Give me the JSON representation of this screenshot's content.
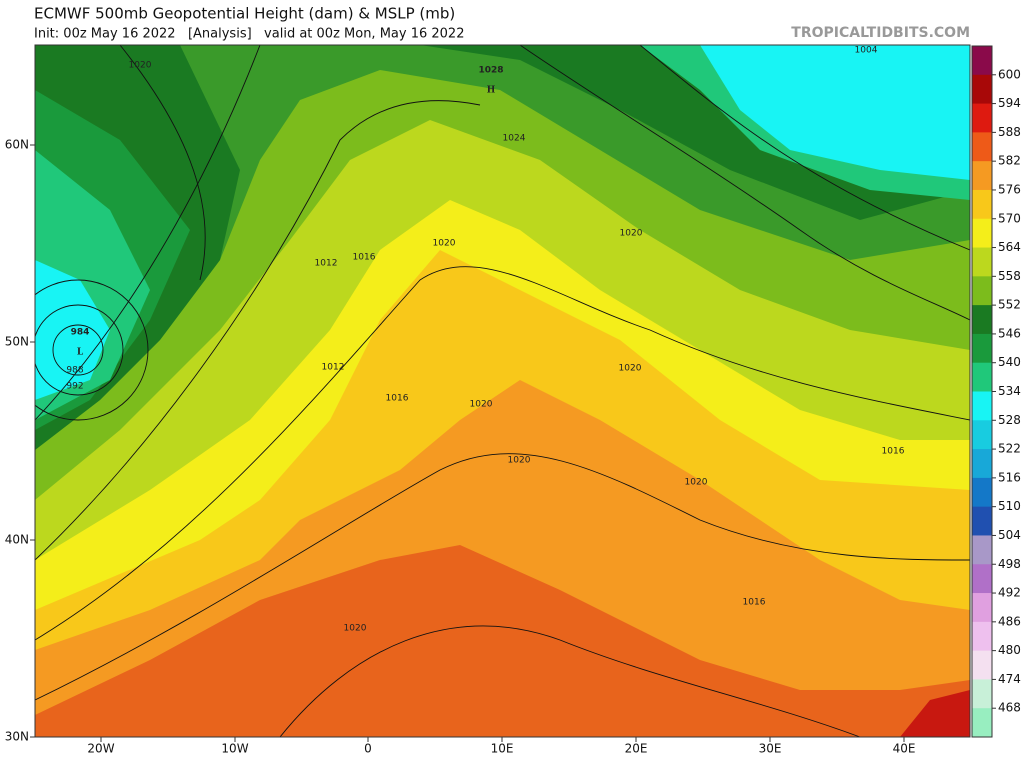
{
  "header": {
    "title": "ECMWF 500mb Geopotential Height (dam) & MSLP (mb)",
    "subtitle": "Init: 00z May 16 2022   [Analysis]   valid at 00z Mon, May 16 2022",
    "source": "TROPICALTIDBITS.COM"
  },
  "axes": {
    "lat_labels": [
      "60N",
      "50N",
      "40N",
      "30N"
    ],
    "lon_labels": [
      "20W",
      "10W",
      "0",
      "10E",
      "20E",
      "30E",
      "40E"
    ]
  },
  "map": {
    "pressure_labels": [
      "1020",
      "1004",
      "1028",
      "H",
      "1024",
      "1020",
      "1016",
      "1012",
      "1020",
      "984",
      "L",
      "988",
      "992",
      "1012",
      "1016",
      "1020",
      "1020",
      "1020",
      "1020",
      "1016",
      "1016",
      "1020"
    ]
  },
  "colorbar": {
    "labels": [
      "600",
      "594",
      "588",
      "582",
      "576",
      "570",
      "564",
      "558",
      "552",
      "546",
      "540",
      "534",
      "528",
      "522",
      "516",
      "510",
      "504",
      "498",
      "492",
      "486",
      "480",
      "474",
      "468"
    ],
    "colors": [
      "#8a0a4a",
      "#a80808",
      "#de1a10",
      "#ee5a18",
      "#f59a22",
      "#f8c81a",
      "#f4ee1a",
      "#bcd81e",
      "#7cbc1c",
      "#1a7a22",
      "#1a9a3c",
      "#20c87a",
      "#18f4f4",
      "#18cce0",
      "#18a8d8",
      "#1478c8",
      "#2050b0",
      "#a898c8",
      "#b070c8",
      "#e0a0e0",
      "#eec0ee",
      "#f4e0f0",
      "#c8f0d8",
      "#98eec0"
    ]
  }
}
